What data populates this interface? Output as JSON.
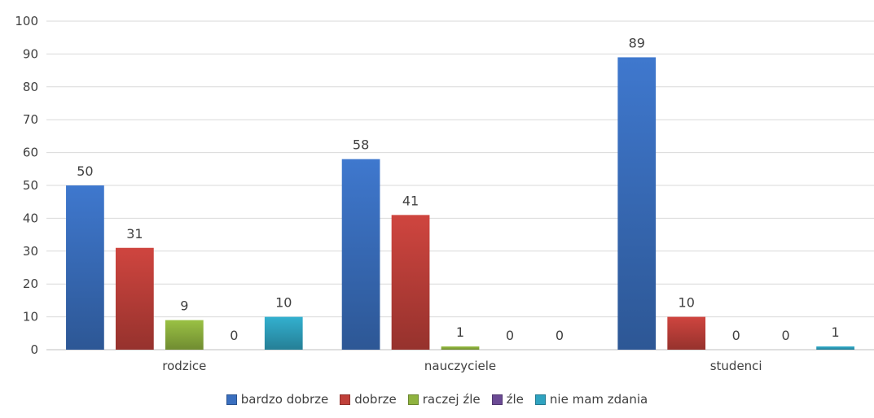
{
  "chart_data": {
    "type": "bar",
    "title": "",
    "xlabel": "",
    "ylabel": "",
    "categories": [
      "rodzice",
      "nauczyciele",
      "studenci"
    ],
    "series": [
      {
        "name": "bardzo dobrze",
        "color": "#3a6fbf",
        "values": [
          50,
          58,
          89
        ]
      },
      {
        "name": "dobrze",
        "color": "#c0403a",
        "values": [
          31,
          41,
          10
        ]
      },
      {
        "name": "raczej źle",
        "color": "#8fb33f",
        "values": [
          9,
          1,
          0
        ]
      },
      {
        "name": "źle",
        "color": "#6b4a94",
        "values": [
          0,
          0,
          0
        ]
      },
      {
        "name": "nie mam zdania",
        "color": "#2fa3c0",
        "values": [
          10,
          0,
          1
        ]
      }
    ],
    "ylim": [
      0,
      100
    ],
    "yticks": [
      0,
      10,
      20,
      30,
      40,
      50,
      60,
      70,
      80,
      90,
      100
    ],
    "grid": true,
    "legend_position": "bottom"
  }
}
